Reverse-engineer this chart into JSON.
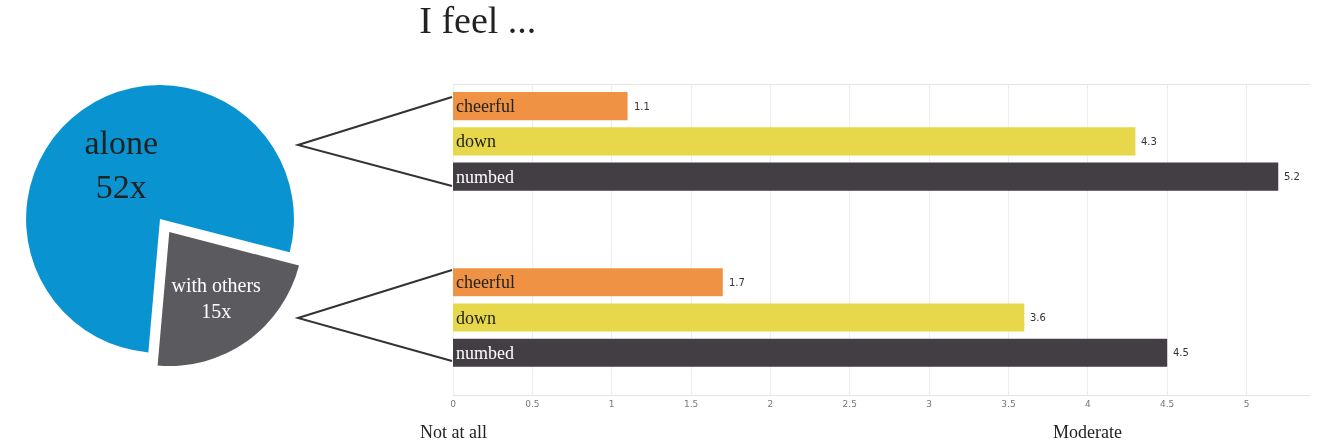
{
  "chart_data": [
    {
      "type": "pie",
      "categories": [
        "alone",
        "with others"
      ],
      "values": [
        52,
        15
      ],
      "value_labels": [
        "52x",
        "15x"
      ],
      "colors": [
        "#0a93d1",
        "#5b5a5e"
      ],
      "legend": false
    },
    {
      "type": "bar",
      "orientation": "horizontal",
      "title": "I feel ...",
      "categories": [
        "cheerful",
        "down",
        "numbed",
        null,
        null,
        "cheerful",
        "down",
        "numbed"
      ],
      "values": [
        1.1,
        4.3,
        5.2,
        null,
        null,
        1.7,
        3.6,
        4.5
      ],
      "colors": [
        "#ef9244",
        "#e6d84a",
        "#423e43",
        null,
        null,
        "#ef9244",
        "#e6d84a",
        "#423e43"
      ],
      "data_labels": true,
      "xlim": [
        0,
        5.4
      ],
      "xticks": [
        0,
        0.5,
        1,
        1.5,
        2,
        2.5,
        3,
        3.5,
        4,
        4.5,
        5
      ],
      "grid": "x",
      "legend": false,
      "annotations": [
        "Not at all",
        "Moderate"
      ]
    }
  ]
}
